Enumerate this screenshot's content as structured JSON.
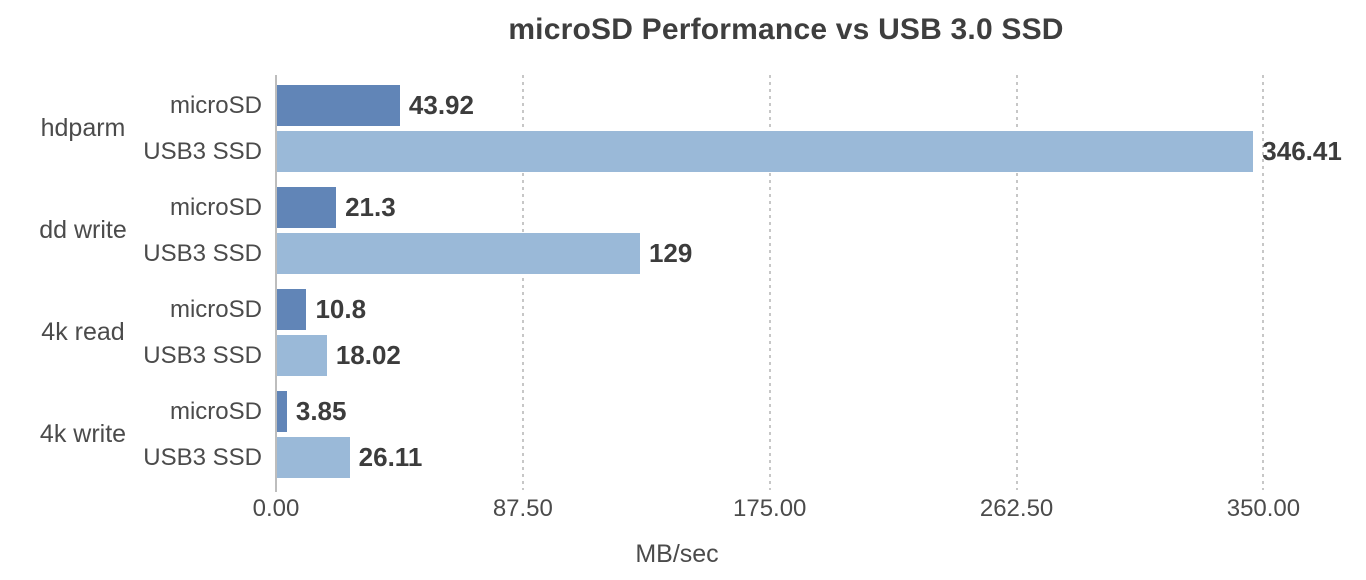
{
  "chart_data": {
    "type": "bar",
    "orientation": "horizontal",
    "title": "microSD Performance vs USB 3.0 SSD",
    "categories": [
      "hdparm",
      "dd write",
      "4k read",
      "4k write"
    ],
    "series": [
      {
        "name": "microSD",
        "color": "#6185b7",
        "values": [
          43.92,
          21.3,
          10.8,
          3.85
        ],
        "labels": [
          "43.92",
          "21.3",
          "10.8",
          "3.85"
        ]
      },
      {
        "name": "USB3 SSD",
        "color": "#9ab9d8",
        "values": [
          346.41,
          129,
          18.02,
          26.11
        ],
        "labels": [
          "346.41",
          "129",
          "18.02",
          "26.11"
        ]
      }
    ],
    "xlabel": "MB/sec",
    "x_ticks": [
      {
        "value": 0,
        "label": "0.00"
      },
      {
        "value": 87.5,
        "label": "87.50"
      },
      {
        "value": 175,
        "label": "175.00"
      },
      {
        "value": 262.5,
        "label": "262.50"
      },
      {
        "value": 350,
        "label": "350.00"
      }
    ],
    "xlim": [
      0,
      386
    ],
    "grid": "vertical-dotted",
    "legend_position": "none"
  }
}
